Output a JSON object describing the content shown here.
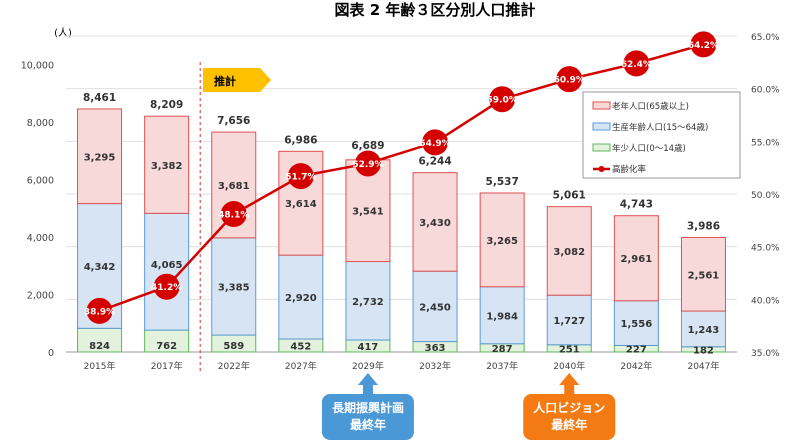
{
  "chart_data": {
    "type": "bar",
    "title": "図表 2 年齢３区分別人口推計",
    "ylabel": "(人)",
    "ylim": [
      0,
      11000
    ],
    "yticks": [
      0,
      2000,
      4000,
      6000,
      8000,
      10000
    ],
    "ytick_labels": [
      "0",
      "2,000",
      "4,000",
      "6,000",
      "8,000",
      "10,000"
    ],
    "y2lim": [
      35.0,
      65.0
    ],
    "y2tick_labels": [
      "35.0%",
      "40.0%",
      "45.0%",
      "50.0%",
      "55.0%",
      "60.0%",
      "65.0%"
    ],
    "categories": [
      "2015年",
      "2017年",
      "2022年",
      "2027年",
      "2029年",
      "2032年",
      "2037年",
      "2040年",
      "2042年",
      "2047年"
    ],
    "stacked": true,
    "series": [
      {
        "name": "年少人口(0～14歳)",
        "values": [
          824,
          762,
          589,
          452,
          417,
          363,
          287,
          251,
          227,
          182
        ],
        "color": "#e2f2dc",
        "edge": "#5cb85c"
      },
      {
        "name": "生産年齢人口(15～64歳)",
        "values": [
          4342,
          4065,
          3385,
          2920,
          2732,
          2450,
          1984,
          1727,
          1556,
          1243
        ],
        "color": "#d6e4f4",
        "edge": "#5b9bd5"
      },
      {
        "name": "老年人口(65歳以上)",
        "values": [
          3295,
          3382,
          3681,
          3614,
          3541,
          3430,
          3265,
          3082,
          2961,
          2561
        ],
        "color": "#f8d9d9",
        "edge": "#e05050"
      }
    ],
    "totals": [
      "8,461",
      "8,209",
      "7,656",
      "6,986",
      "6,689",
      "6,244",
      "5,537",
      "5,061",
      "4,743",
      "3,986"
    ],
    "line_series": {
      "name": "高齢化率",
      "axis": "right",
      "values": [
        38.9,
        41.2,
        48.1,
        51.7,
        52.9,
        54.9,
        59.0,
        60.9,
        62.4,
        64.2
      ],
      "color": "#d40000"
    },
    "legend_position": "top-right",
    "grid": true,
    "annotations": {
      "projection_tag": "推計",
      "callouts": [
        {
          "category": "2029年",
          "lines": [
            "長期振興計画",
            "最終年"
          ],
          "color": "#4a98d6"
        },
        {
          "category": "2040年",
          "lines": [
            "人口ビジョン",
            "最終年"
          ],
          "color": "#f47a14"
        }
      ]
    }
  }
}
